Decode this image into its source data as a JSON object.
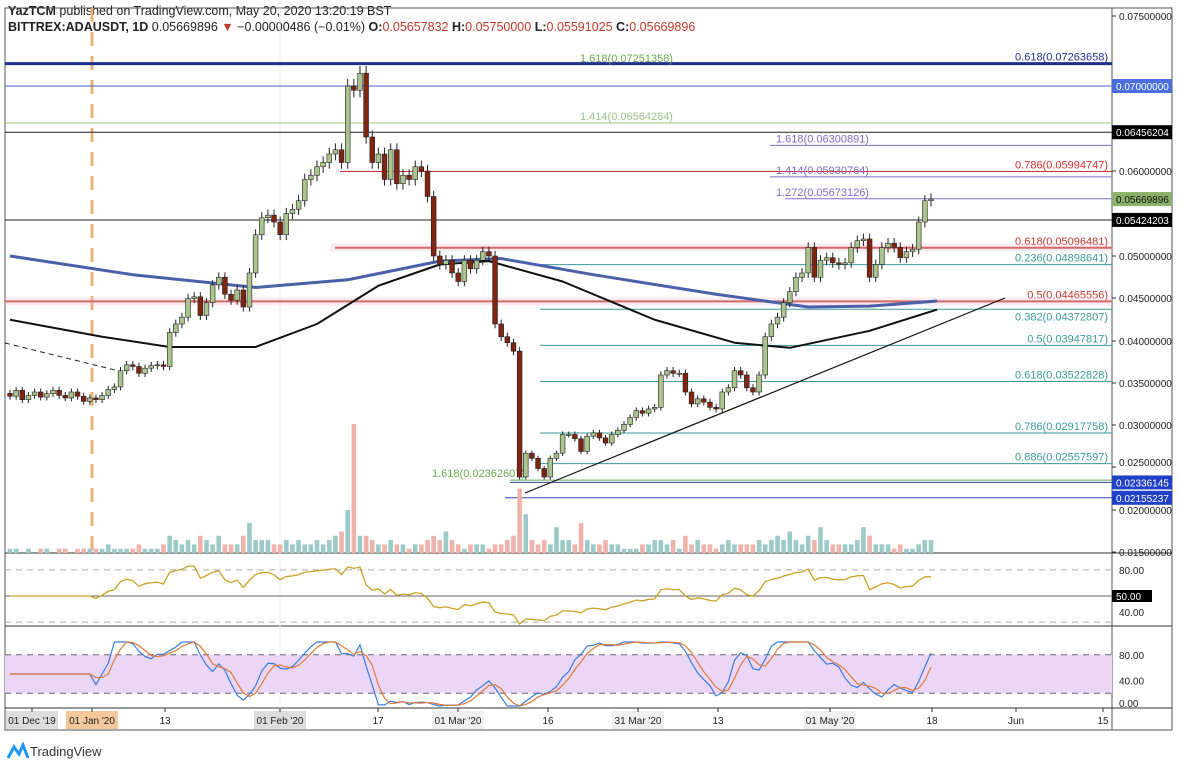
{
  "header": {
    "publisher": "YazTCM",
    "published_text": "published on TradingView.com, May 20, 2020 13:20:19 BST",
    "symbol": "BITTREX:ADAUSDT, 1D",
    "last": "0.05669896",
    "change": "−0.00000486 (−0.01%)",
    "o_label": "O:",
    "o": "0.05657832",
    "h_label": "H:",
    "h": "0.05750000",
    "l_label": "L:",
    "l": "0.05591025",
    "c_label": "C:",
    "c": "0.05669896"
  },
  "brand": "TradingView",
  "colors": {
    "up": "#a9c48c",
    "down": "#7e2612",
    "vol_up": "#9ccac8",
    "vol_down": "#efb3ab",
    "ma_blue": "#4a60a8",
    "ma_black": "#111111",
    "rsi": "#c9a227",
    "stoch_k": "#3b7ddd",
    "stoch_d": "#e07b39",
    "stoch_band": "#ecd6f7"
  },
  "chart_data": {
    "type": "candlestick",
    "price_axis": {
      "ticks": [
        "0.07500000",
        "0.07000000",
        "0.06000000",
        "0.05000000",
        "0.04500000",
        "0.04000000",
        "0.03500000",
        "0.03000000",
        "0.02500000",
        "0.02000000",
        "0.01500000"
      ],
      "range": [
        0.015,
        0.075
      ]
    },
    "time_axis": [
      "01 Dec '19",
      "01 Jan '20",
      "13",
      "01 Feb '20",
      "17",
      "01 Mar '20",
      "16",
      "31 Mar '20",
      "13",
      "01 May '20",
      "18",
      "Jun",
      "15"
    ],
    "closes": [
      0.0335,
      0.0342,
      0.0331,
      0.0336,
      0.034,
      0.0334,
      0.0338,
      0.0342,
      0.0336,
      0.0333,
      0.034,
      0.0335,
      0.0329,
      0.0333,
      0.0331,
      0.0336,
      0.0343,
      0.0346,
      0.0365,
      0.0372,
      0.037,
      0.0362,
      0.0368,
      0.0371,
      0.0372,
      0.037,
      0.041,
      0.042,
      0.0428,
      0.045,
      0.0452,
      0.043,
      0.0445,
      0.0466,
      0.0475,
      0.0455,
      0.0448,
      0.046,
      0.044,
      0.048,
      0.0525,
      0.0545,
      0.0548,
      0.054,
      0.0525,
      0.055,
      0.0555,
      0.0565,
      0.059,
      0.0595,
      0.0605,
      0.061,
      0.062,
      0.0625,
      0.061,
      0.07,
      0.0695,
      0.0715,
      0.064,
      0.061,
      0.062,
      0.059,
      0.0625,
      0.0585,
      0.0595,
      0.059,
      0.0605,
      0.06,
      0.057,
      0.05,
      0.049,
      0.0495,
      0.048,
      0.047,
      0.0495,
      0.0485,
      0.0495,
      0.0505,
      0.05,
      0.042,
      0.0405,
      0.0398,
      0.0388,
      0.024,
      0.0268,
      0.0262,
      0.025,
      0.024,
      0.0262,
      0.0268,
      0.029,
      0.029,
      0.0285,
      0.027,
      0.0288,
      0.0292,
      0.0286,
      0.028,
      0.029,
      0.0295,
      0.0302,
      0.031,
      0.0318,
      0.0315,
      0.032,
      0.0322,
      0.036,
      0.0365,
      0.0362,
      0.0362,
      0.034,
      0.0326,
      0.0332,
      0.0328,
      0.0322,
      0.032,
      0.034,
      0.0345,
      0.0365,
      0.036,
      0.0345,
      0.034,
      0.036,
      0.0405,
      0.042,
      0.0428,
      0.0445,
      0.0458,
      0.0475,
      0.048,
      0.051,
      0.0475,
      0.0495,
      0.0498,
      0.0492,
      0.049,
      0.0492,
      0.051,
      0.0518,
      0.052,
      0.0475,
      0.049,
      0.051,
      0.0515,
      0.051,
      0.0498,
      0.0505,
      0.0508,
      0.054,
      0.0565,
      0.0567
    ],
    "volume": [
      1,
      1,
      0,
      1,
      0,
      1,
      1,
      0,
      1,
      1,
      0,
      1,
      1,
      1,
      1,
      1,
      2,
      1,
      1,
      1,
      1,
      2,
      1,
      1,
      1,
      2,
      4,
      3,
      2,
      3,
      2,
      4,
      3,
      2,
      4,
      2,
      2,
      2,
      4,
      7,
      3,
      3,
      3,
      2,
      2,
      3,
      2,
      3,
      2,
      2,
      3,
      2,
      3,
      4,
      5,
      10,
      30,
      4,
      4,
      3,
      2,
      2,
      3,
      2,
      2,
      1,
      2,
      2,
      3,
      4,
      3,
      5,
      3,
      2,
      1,
      2,
      2,
      2,
      1,
      2,
      2,
      3,
      4,
      15,
      9,
      3,
      2,
      3,
      2,
      6,
      3,
      3,
      2,
      7,
      3,
      2,
      2,
      3,
      2,
      2,
      1,
      1,
      1,
      2,
      2,
      3,
      3,
      2,
      3,
      1,
      4,
      2,
      3,
      2,
      2,
      1,
      2,
      3,
      2,
      2,
      2,
      2,
      3,
      2,
      3,
      4,
      3,
      5,
      3,
      2,
      4,
      3,
      6,
      3,
      2,
      2,
      2,
      2,
      3,
      6,
      4,
      2,
      2,
      2,
      1,
      2,
      1,
      1,
      2,
      3,
      3
    ],
    "ma_blue": [
      [
        0,
        0.05
      ],
      [
        20,
        0.0478
      ],
      [
        40,
        0.0463
      ],
      [
        55,
        0.0472
      ],
      [
        70,
        0.0494
      ],
      [
        80,
        0.0497
      ],
      [
        95,
        0.0478
      ],
      [
        115,
        0.0455
      ],
      [
        130,
        0.044
      ],
      [
        140,
        0.0441
      ],
      [
        151,
        0.0447
      ]
    ],
    "ma_black": [
      [
        0,
        0.0425
      ],
      [
        15,
        0.0405
      ],
      [
        26,
        0.0393
      ],
      [
        40,
        0.0393
      ],
      [
        50,
        0.042
      ],
      [
        60,
        0.0465
      ],
      [
        70,
        0.049
      ],
      [
        78,
        0.0494
      ],
      [
        90,
        0.047
      ],
      [
        105,
        0.0425
      ],
      [
        118,
        0.0398
      ],
      [
        127,
        0.0392
      ],
      [
        140,
        0.0412
      ],
      [
        151,
        0.0437
      ]
    ],
    "levels": [
      {
        "price": 0.07263658,
        "label": "0.618(0.07263658)",
        "color": "#1f2f8f",
        "from": 0,
        "width": 3
      },
      {
        "price": 0.0725,
        "label": "1.618(0.07251358)",
        "color": "#6aa84f",
        "from": -1,
        "labelpos": "mid"
      },
      {
        "price": 0.07,
        "label": "",
        "color": "#4a60c8",
        "from": 0,
        "tag": "0.07000000",
        "tagcolor": "#4a6fdc"
      },
      {
        "price": 0.06564264,
        "label": "1.414(0.06564264)",
        "color": "#9ec48a",
        "from": 0,
        "labelpos": "mid"
      },
      {
        "price": 0.06456204,
        "label": "",
        "color": "#222",
        "from": 0,
        "tag": "0.06456204",
        "tagcolor": "#000"
      },
      {
        "price": 0.06300891,
        "label": "1.618(0.06300891)",
        "color": "#7e6cc4",
        "from": 770
      },
      {
        "price": 0.05994747,
        "label": "0.786(0.05994747)",
        "color": "#d0312d",
        "from": 340,
        "labelcolor": "#d0312d"
      },
      {
        "price": 0.05930764,
        "label": "1.414(0.05930764)",
        "color": "#7e6cc4",
        "from": 770
      },
      {
        "price": 0.05673126,
        "label": "1.272(0.05673126)",
        "color": "#7e6cc4",
        "from": 785
      },
      {
        "price": 0.05424203,
        "label": "",
        "color": "#222",
        "from": 0,
        "tag": "0.05424203",
        "tagcolor": "#000"
      },
      {
        "price": 0.05096481,
        "label": "0.618(0.05096481)",
        "color": "#c0392b",
        "from": 335,
        "width": 2
      },
      {
        "price": 0.04898641,
        "label": "0.236(0.04898641)",
        "color": "#3d9a9a",
        "from": 540
      },
      {
        "price": 0.04465556,
        "label": "0.5(0.04465556)",
        "color": "#c0392b",
        "from": 5,
        "width": 2
      },
      {
        "price": 0.04372807,
        "label": "0.382(0.04372807)",
        "color": "#3d9a9a",
        "from": 540
      },
      {
        "price": 0.03947817,
        "label": "0.5(0.03947817)",
        "color": "#3d9a9a",
        "from": 540
      },
      {
        "price": 0.03522828,
        "label": "0.618(0.03522828)",
        "color": "#3d9a9a",
        "from": 540
      },
      {
        "price": 0.02917758,
        "label": "0.786(0.02917758)",
        "color": "#3d9a9a",
        "from": 540
      },
      {
        "price": 0.02557597,
        "label": "0.886(0.02557597)",
        "color": "#3d9a9a",
        "from": 540
      },
      {
        "price": 0.02362607,
        "label": "1.618(0.02362607)",
        "color": "#6aa84f",
        "from": 510,
        "labelpos": "left"
      },
      {
        "price": 0.02336145,
        "label": "",
        "color": "#2f45b0",
        "from": 510,
        "tag": "0.02336145",
        "tagcolor": "#2140c8"
      },
      {
        "price": 0.02155237,
        "label": "",
        "color": "#2f45b0",
        "from": 505,
        "tag": "0.02155237",
        "tagcolor": "#2140c8"
      }
    ],
    "current_price_tag": "0.05669896",
    "rsi": {
      "ticks": [
        "80.00",
        "50.00",
        "40.00"
      ],
      "tag": "50.00"
    },
    "stoch": {
      "ticks": [
        "80.00",
        "40.00",
        "0.00"
      ]
    }
  }
}
